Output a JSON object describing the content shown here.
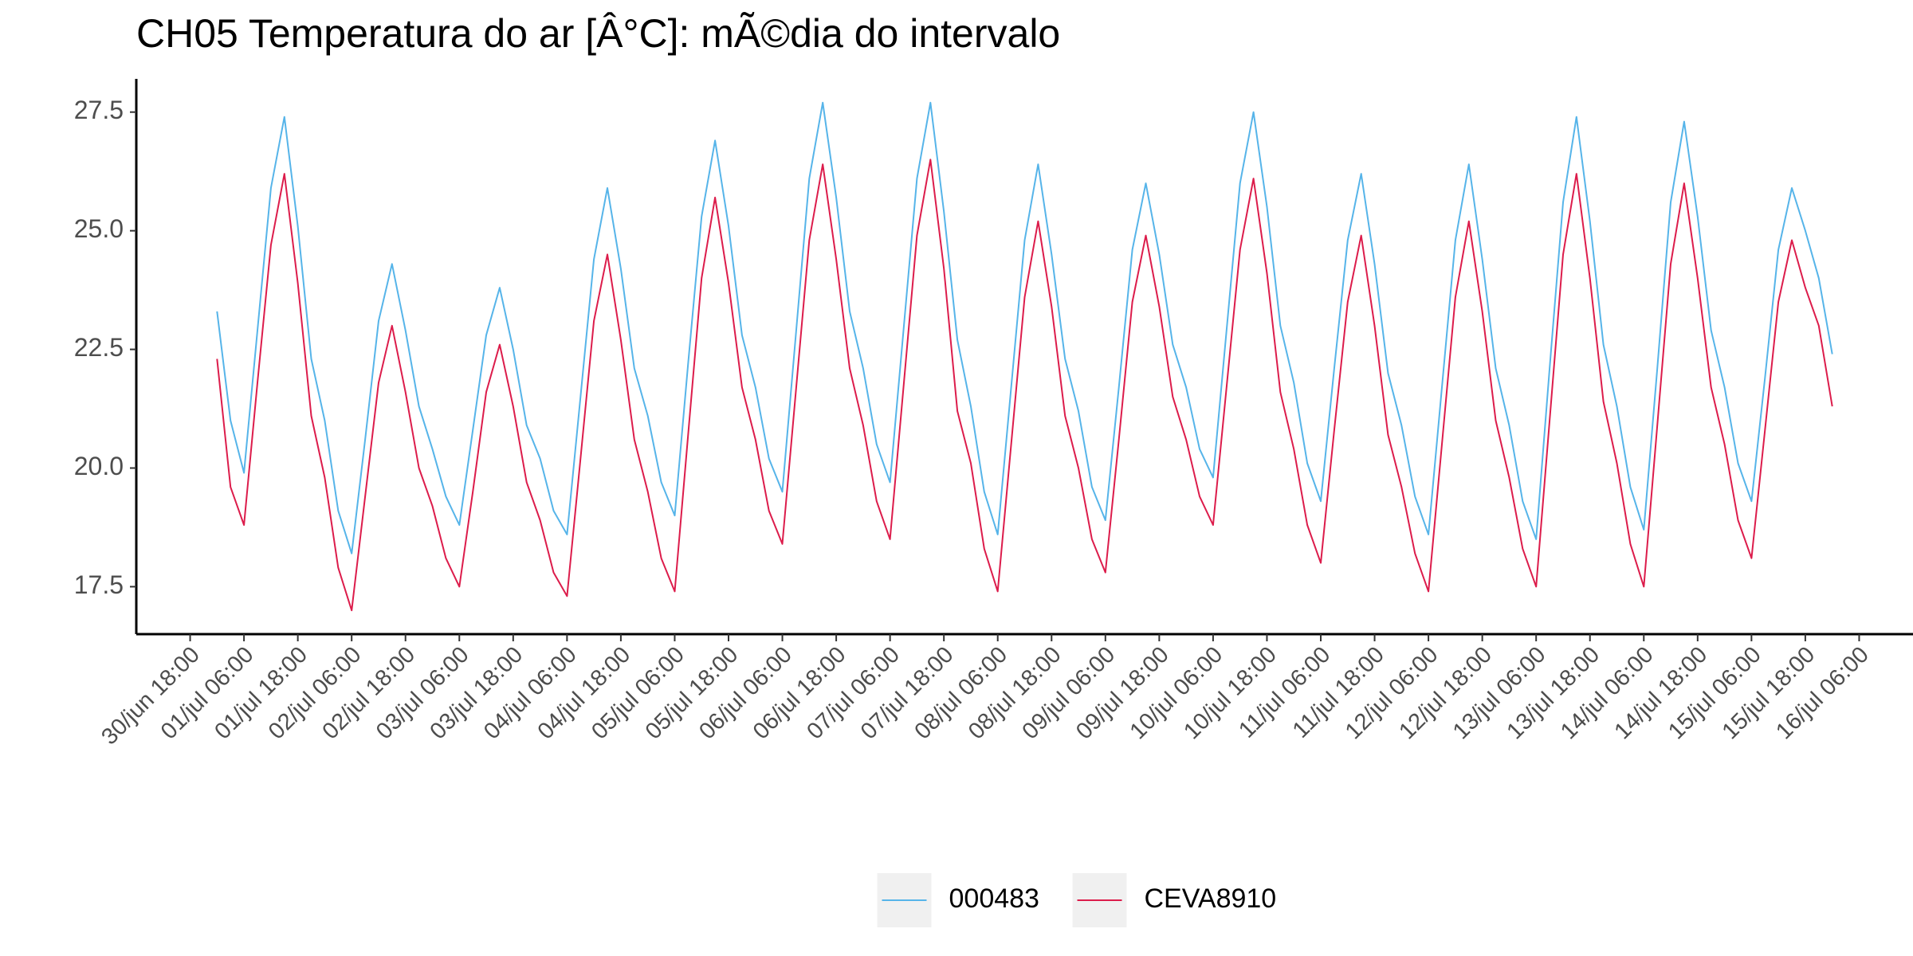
{
  "chart_data": {
    "type": "line",
    "title": "CH05 Temperatura do ar [Â°C]: mÃ©dia do intervalo",
    "x": [
      "01/jul 00:00",
      "01/jul 03:00",
      "01/jul 06:00",
      "01/jul 09:00",
      "01/jul 12:00",
      "01/jul 15:00",
      "01/jul 18:00",
      "01/jul 21:00",
      "02/jul 00:00",
      "02/jul 03:00",
      "02/jul 06:00",
      "02/jul 09:00",
      "02/jul 12:00",
      "02/jul 15:00",
      "02/jul 18:00",
      "02/jul 21:00",
      "03/jul 00:00",
      "03/jul 03:00",
      "03/jul 06:00",
      "03/jul 09:00",
      "03/jul 12:00",
      "03/jul 15:00",
      "03/jul 18:00",
      "03/jul 21:00",
      "04/jul 00:00",
      "04/jul 03:00",
      "04/jul 06:00",
      "04/jul 09:00",
      "04/jul 12:00",
      "04/jul 15:00",
      "04/jul 18:00",
      "04/jul 21:00",
      "05/jul 00:00",
      "05/jul 03:00",
      "05/jul 06:00",
      "05/jul 09:00",
      "05/jul 12:00",
      "05/jul 15:00",
      "05/jul 18:00",
      "05/jul 21:00",
      "06/jul 00:00",
      "06/jul 03:00",
      "06/jul 06:00",
      "06/jul 09:00",
      "06/jul 12:00",
      "06/jul 15:00",
      "06/jul 18:00",
      "06/jul 21:00",
      "07/jul 00:00",
      "07/jul 03:00",
      "07/jul 06:00",
      "07/jul 09:00",
      "07/jul 12:00",
      "07/jul 15:00",
      "07/jul 18:00",
      "07/jul 21:00",
      "08/jul 00:00",
      "08/jul 03:00",
      "08/jul 06:00",
      "08/jul 09:00",
      "08/jul 12:00",
      "08/jul 15:00",
      "08/jul 18:00",
      "08/jul 21:00",
      "09/jul 00:00",
      "09/jul 03:00",
      "09/jul 06:00",
      "09/jul 09:00",
      "09/jul 12:00",
      "09/jul 15:00",
      "09/jul 18:00",
      "09/jul 21:00",
      "10/jul 00:00",
      "10/jul 03:00",
      "10/jul 06:00",
      "10/jul 09:00",
      "10/jul 12:00",
      "10/jul 15:00",
      "10/jul 18:00",
      "10/jul 21:00",
      "11/jul 00:00",
      "11/jul 03:00",
      "11/jul 06:00",
      "11/jul 09:00",
      "11/jul 12:00",
      "11/jul 15:00",
      "11/jul 18:00",
      "11/jul 21:00",
      "12/jul 00:00",
      "12/jul 03:00",
      "12/jul 06:00",
      "12/jul 09:00",
      "12/jul 12:00",
      "12/jul 15:00",
      "12/jul 18:00",
      "12/jul 21:00",
      "13/jul 00:00",
      "13/jul 03:00",
      "13/jul 06:00",
      "13/jul 09:00",
      "13/jul 12:00",
      "13/jul 15:00",
      "13/jul 18:00",
      "13/jul 21:00",
      "14/jul 00:00",
      "14/jul 03:00",
      "14/jul 06:00",
      "14/jul 09:00",
      "14/jul 12:00",
      "14/jul 15:00",
      "14/jul 18:00",
      "14/jul 21:00",
      "15/jul 00:00",
      "15/jul 03:00",
      "15/jul 06:00",
      "15/jul 09:00",
      "15/jul 12:00",
      "15/jul 15:00",
      "15/jul 18:00",
      "15/jul 21:00",
      "16/jul 00:00"
    ],
    "series": [
      {
        "name": "000483",
        "color": "#56B4E9",
        "values": [
          23.3,
          21.0,
          19.9,
          22.9,
          25.9,
          27.4,
          25.1,
          22.3,
          21.0,
          19.1,
          18.2,
          20.6,
          23.1,
          24.3,
          22.9,
          21.3,
          20.4,
          19.4,
          18.8,
          20.8,
          22.8,
          23.8,
          22.5,
          20.9,
          20.2,
          19.1,
          18.6,
          21.5,
          24.4,
          25.9,
          24.2,
          22.1,
          21.1,
          19.7,
          19.0,
          22.2,
          25.3,
          26.9,
          25.1,
          22.8,
          21.7,
          20.2,
          19.5,
          22.8,
          26.1,
          27.7,
          25.7,
          23.3,
          22.1,
          20.5,
          19.7,
          22.9,
          26.1,
          27.7,
          25.4,
          22.7,
          21.3,
          19.5,
          18.6,
          21.7,
          24.8,
          26.4,
          24.5,
          22.3,
          21.2,
          19.6,
          18.9,
          21.7,
          24.6,
          26.0,
          24.5,
          22.6,
          21.7,
          20.4,
          19.8,
          22.9,
          26.0,
          27.5,
          25.5,
          23.0,
          21.8,
          20.1,
          19.3,
          22.1,
          24.8,
          26.2,
          24.3,
          22.0,
          20.9,
          19.4,
          18.6,
          21.7,
          24.8,
          26.4,
          24.4,
          22.1,
          20.9,
          19.3,
          18.5,
          22.1,
          25.6,
          27.4,
          25.2,
          22.6,
          21.3,
          19.6,
          18.7,
          22.1,
          25.6,
          27.3,
          25.3,
          22.9,
          21.7,
          20.1,
          19.3,
          21.9,
          24.6,
          25.9,
          25.0,
          24.0,
          22.4
        ]
      },
      {
        "name": "CEVA8910",
        "color": "#DC1C4B",
        "values": [
          22.3,
          19.6,
          18.8,
          21.8,
          24.7,
          26.2,
          23.9,
          21.1,
          19.8,
          17.9,
          17.0,
          19.4,
          21.8,
          23.0,
          21.6,
          20.0,
          19.2,
          18.1,
          17.5,
          19.5,
          21.6,
          22.6,
          21.3,
          19.7,
          18.9,
          17.8,
          17.3,
          20.2,
          23.1,
          24.5,
          22.7,
          20.6,
          19.5,
          18.1,
          17.4,
          20.7,
          24.0,
          25.7,
          23.9,
          21.7,
          20.6,
          19.1,
          18.4,
          21.6,
          24.8,
          26.4,
          24.4,
          22.1,
          20.9,
          19.3,
          18.5,
          21.7,
          24.9,
          26.5,
          24.2,
          21.2,
          20.1,
          18.3,
          17.4,
          20.5,
          23.6,
          25.2,
          23.4,
          21.1,
          20.0,
          18.5,
          17.8,
          20.6,
          23.5,
          24.9,
          23.4,
          21.5,
          20.6,
          19.4,
          18.8,
          21.7,
          24.6,
          26.1,
          24.1,
          21.6,
          20.4,
          18.8,
          18.0,
          20.8,
          23.5,
          24.9,
          23.0,
          20.7,
          19.6,
          18.2,
          17.4,
          20.5,
          23.6,
          25.2,
          23.3,
          21.0,
          19.8,
          18.3,
          17.5,
          21.0,
          24.5,
          26.2,
          24.0,
          21.4,
          20.1,
          18.4,
          17.5,
          20.9,
          24.3,
          26.0,
          24.0,
          21.7,
          20.5,
          18.9,
          18.1,
          20.8,
          23.5,
          24.8,
          23.8,
          23.0,
          21.3
        ]
      }
    ],
    "xlim": [
      "30/jun 06:00",
      "16/jul 18:00"
    ],
    "xticks": [
      "30/jun 18:00",
      "01/jul 06:00",
      "01/jul 18:00",
      "02/jul 06:00",
      "02/jul 18:00",
      "03/jul 06:00",
      "03/jul 18:00",
      "04/jul 06:00",
      "04/jul 18:00",
      "05/jul 06:00",
      "05/jul 18:00",
      "06/jul 06:00",
      "06/jul 18:00",
      "07/jul 06:00",
      "07/jul 18:00",
      "08/jul 06:00",
      "08/jul 18:00",
      "09/jul 06:00",
      "09/jul 18:00",
      "10/jul 06:00",
      "10/jul 18:00",
      "11/jul 06:00",
      "11/jul 18:00",
      "12/jul 06:00",
      "12/jul 18:00",
      "13/jul 06:00",
      "13/jul 18:00",
      "14/jul 06:00",
      "14/jul 18:00",
      "15/jul 06:00",
      "15/jul 18:00",
      "16/jul 06:00"
    ],
    "ylim": [
      16.5,
      28.2
    ],
    "yticks": [
      17.5,
      {
        "value": 20,
        "label": "20.0"
      },
      22.5,
      {
        "value": 25,
        "label": "25.0"
      },
      27.5
    ],
    "grid": false,
    "legend": "bottom"
  }
}
